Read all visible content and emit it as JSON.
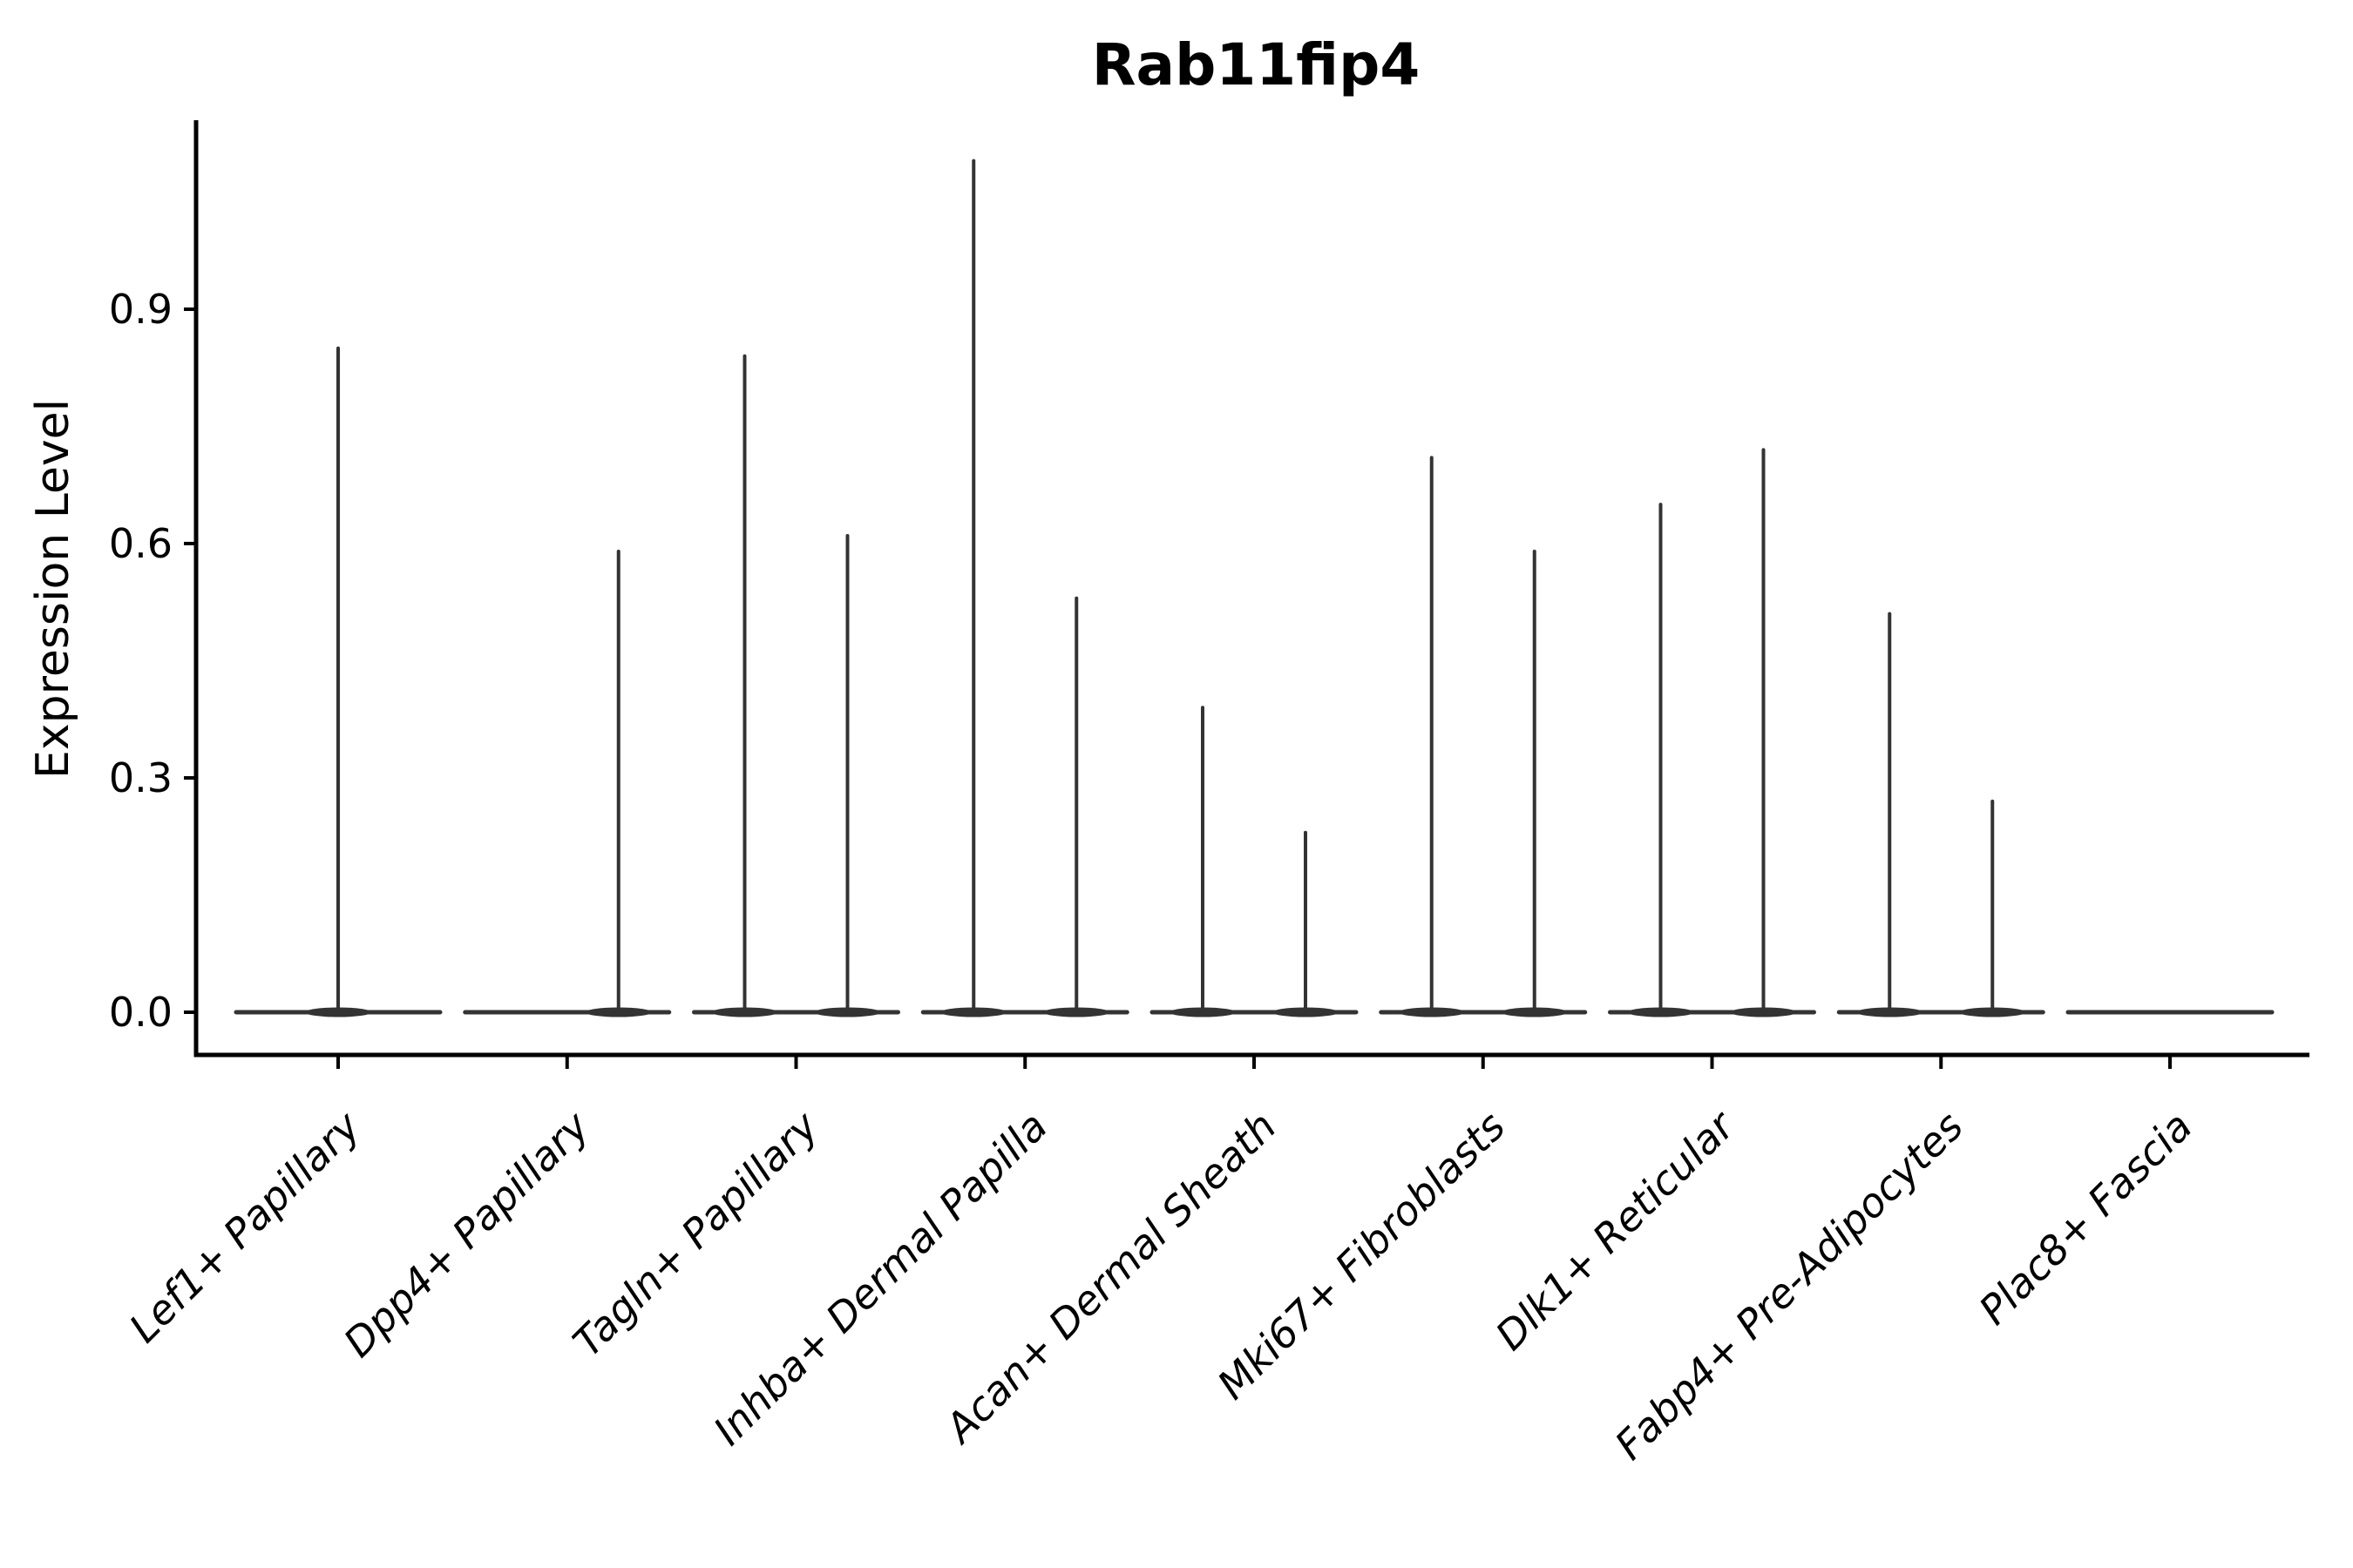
{
  "figure": {
    "background": "#ffffff"
  },
  "chart_data": {
    "type": "violin",
    "title": "Rab11fip4",
    "ylabel": "Expression Level",
    "xlabel": "",
    "yticks": [
      0.0,
      0.3,
      0.6,
      0.9
    ],
    "ylim": [
      -0.05,
      1.14
    ],
    "grid": false,
    "legend": "none",
    "violin_color": "#333333",
    "axis_color": "#000000",
    "shape_note": "Each violin is fully collapsed at expression 0 (flat wide base) with a single thin vertical spike reaching the category maximum; split categories show two side-by-side spikes; Plac8+ Fascia is entirely 0.",
    "categories": [
      "Lef1+ Papillary",
      "Dpp4+ Papillary",
      "Tagln+ Papillary",
      "Inhba+ Dermal Papilla",
      "Acan+ Dermal Sheath",
      "Mki67+ Fibroblasts",
      "Dlk1+ Reticular",
      "Fabp4+ Pre-Adipocytes",
      "Plac8+ Fascia"
    ],
    "violins": [
      [
        {
          "side": "center",
          "max": 0.85
        }
      ],
      [
        {
          "side": "right",
          "max": 0.59
        }
      ],
      [
        {
          "side": "left",
          "max": 0.84
        },
        {
          "side": "right",
          "max": 0.61
        }
      ],
      [
        {
          "side": "left",
          "max": 1.09
        },
        {
          "side": "right",
          "max": 0.53
        }
      ],
      [
        {
          "side": "left",
          "max": 0.39
        },
        {
          "side": "right",
          "max": 0.23
        }
      ],
      [
        {
          "side": "left",
          "max": 0.71
        },
        {
          "side": "right",
          "max": 0.59
        }
      ],
      [
        {
          "side": "left",
          "max": 0.65
        },
        {
          "side": "right",
          "max": 0.72
        }
      ],
      [
        {
          "side": "left",
          "max": 0.51
        },
        {
          "side": "right",
          "max": 0.27
        }
      ],
      []
    ]
  }
}
